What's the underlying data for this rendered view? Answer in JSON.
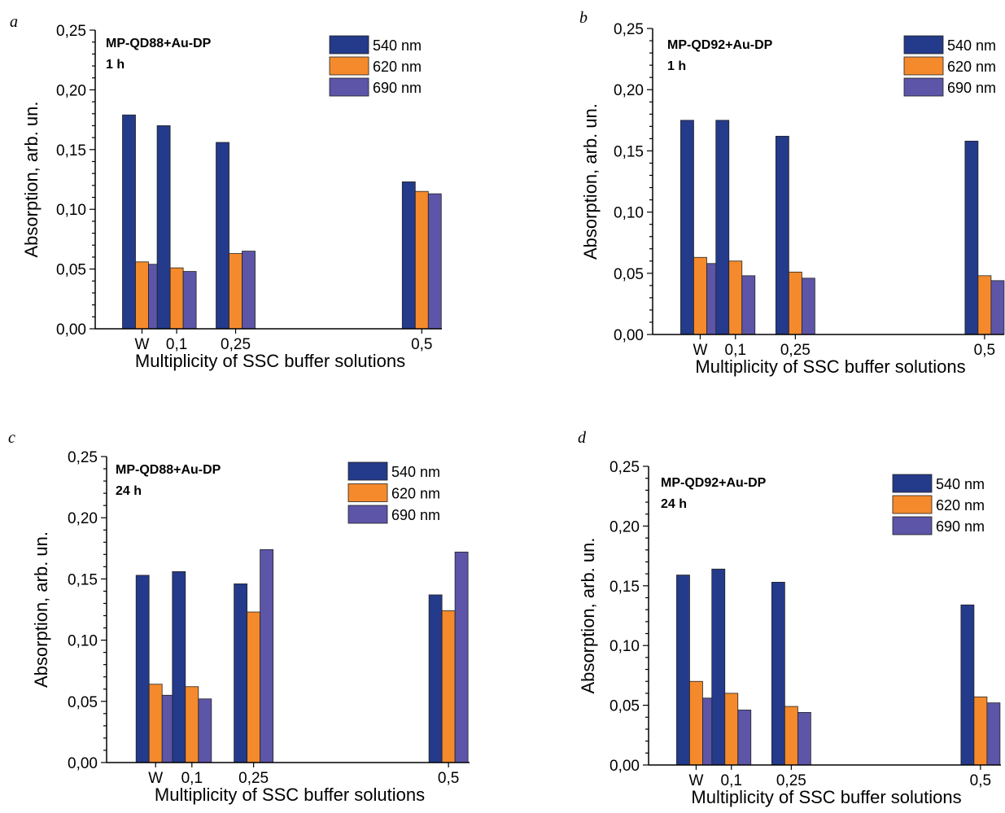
{
  "chart_data": [
    {
      "panel": "a",
      "type": "bar",
      "annotation": [
        "MP-QD88+Au-DP",
        "1 h"
      ],
      "categories": [
        "W",
        "0,1",
        "0,25",
        "0,5"
      ],
      "x_positions": [
        0,
        0.1,
        0.25,
        0.5
      ],
      "series": [
        {
          "name": "540 nm",
          "color": "#243a8a",
          "values": [
            0.179,
            0.17,
            0.156,
            0.123
          ]
        },
        {
          "name": "620 nm",
          "color": "#f58a2c",
          "values": [
            0.056,
            0.051,
            0.063,
            0.115
          ]
        },
        {
          "name": "690 nm",
          "color": "#5c55a8",
          "values": [
            0.054,
            0.048,
            0.065,
            0.113
          ]
        }
      ],
      "xlabel": "Multiplicity of SSC buffer solutions",
      "ylabel": "Absorption, arb. un.",
      "ylim": [
        0,
        0.25
      ],
      "yticks": [
        "0,00",
        "0,05",
        "0,10",
        "0,15",
        "0,20",
        "0,25"
      ],
      "legend": "top-right"
    },
    {
      "panel": "b",
      "type": "bar",
      "annotation": [
        "MP-QD92+Au-DP",
        "1 h"
      ],
      "categories": [
        "W",
        "0,1",
        "0,25",
        "0,5"
      ],
      "x_positions": [
        0,
        0.1,
        0.25,
        0.5
      ],
      "series": [
        {
          "name": "540 nm",
          "color": "#243a8a",
          "values": [
            0.175,
            0.175,
            0.162,
            0.158
          ]
        },
        {
          "name": "620 nm",
          "color": "#f58a2c",
          "values": [
            0.063,
            0.06,
            0.051,
            0.048
          ]
        },
        {
          "name": "690 nm",
          "color": "#5c55a8",
          "values": [
            0.058,
            0.048,
            0.046,
            0.044
          ]
        }
      ],
      "xlabel": "Multiplicity of SSC buffer solutions",
      "ylabel": "Absorption, arb. un.",
      "ylim": [
        0,
        0.25
      ],
      "yticks": [
        "0,00",
        "0,05",
        "0,10",
        "0,15",
        "0,20",
        "0,25"
      ],
      "legend": "top-right"
    },
    {
      "panel": "c",
      "type": "bar",
      "annotation": [
        "MP-QD88+Au-DP",
        "24 h"
      ],
      "categories": [
        "W",
        "0,1",
        "0,25",
        "0,5"
      ],
      "x_positions": [
        0,
        0.1,
        0.25,
        0.5
      ],
      "series": [
        {
          "name": "540 nm",
          "color": "#243a8a",
          "values": [
            0.153,
            0.156,
            0.146,
            0.137
          ]
        },
        {
          "name": "620 nm",
          "color": "#f58a2c",
          "values": [
            0.064,
            0.062,
            0.123,
            0.124
          ]
        },
        {
          "name": "690 nm",
          "color": "#5c55a8",
          "values": [
            0.055,
            0.052,
            0.174,
            0.172
          ]
        }
      ],
      "xlabel": "Multiplicity of SSC buffer solutions",
      "ylabel": "Absorption, arb. un.",
      "ylim": [
        0,
        0.25
      ],
      "yticks": [
        "0,00",
        "0,05",
        "0,10",
        "0,15",
        "0,20",
        "0,25"
      ],
      "legend": "top-right"
    },
    {
      "panel": "d",
      "type": "bar",
      "annotation": [
        "MP-QD92+Au-DP",
        "24 h"
      ],
      "categories": [
        "W",
        "0,1",
        "0,25",
        "0,5"
      ],
      "x_positions": [
        0,
        0.1,
        0.25,
        0.5
      ],
      "series": [
        {
          "name": "540 nm",
          "color": "#243a8a",
          "values": [
            0.159,
            0.164,
            0.153,
            0.134
          ]
        },
        {
          "name": "620 nm",
          "color": "#f58a2c",
          "values": [
            0.07,
            0.06,
            0.049,
            0.057
          ]
        },
        {
          "name": "690 nm",
          "color": "#5c55a8",
          "values": [
            0.056,
            0.046,
            0.044,
            0.052
          ]
        }
      ],
      "xlabel": "Multiplicity of SSC buffer solutions",
      "ylabel": "Absorption, arb. un.",
      "ylim": [
        0,
        0.25
      ],
      "yticks": [
        "0,00",
        "0,05",
        "0,10",
        "0,15",
        "0,20",
        "0,25"
      ],
      "legend": "top-right"
    }
  ]
}
